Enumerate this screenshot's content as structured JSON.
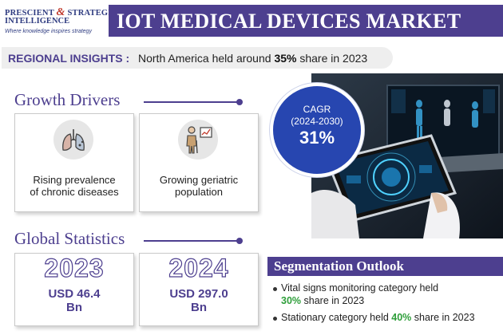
{
  "header": {
    "logo_line1": "PRESCIENT",
    "logo_amp": "&",
    "logo_line1b": "STRATEGIC",
    "logo_line2": "INTELLIGENCE",
    "logo_tagline": "Where knowledge inspires strategy",
    "title": "IOT MEDICAL DEVICES MARKET"
  },
  "regional": {
    "label": "REGIONAL INSIGHTS :",
    "text_before": "North America held around ",
    "highlight": "35%",
    "text_after": " share in 2023"
  },
  "growth": {
    "heading": "Growth Drivers",
    "drivers": [
      {
        "icon": "lungs-icon",
        "line1": "Rising prevalence",
        "line2": "of chronic diseases"
      },
      {
        "icon": "elderly-person-icon",
        "line1": "Growing geriatric",
        "line2": "population"
      }
    ]
  },
  "cagr": {
    "label": "CAGR",
    "period": "(2024-2030)",
    "value": "31%"
  },
  "stats": {
    "heading": "Global Statistics",
    "items": [
      {
        "year": "2023",
        "line1": "USD 46.4",
        "line2": "Bn"
      },
      {
        "year": "2024",
        "line1": "USD 297.0",
        "line2": "Bn"
      }
    ]
  },
  "segmentation": {
    "heading": "Segmentation Outlook",
    "items": [
      {
        "line1": "Vital signs monitoring category held",
        "highlight": "30%",
        "after": " share in 2023"
      },
      {
        "before": "Stationary category held ",
        "highlight": "40%",
        "after": " share in 2023"
      }
    ]
  },
  "colors": {
    "brand": "#4d3f8f",
    "cagr": "#2746b0",
    "highlight": "#2e9e3a"
  }
}
